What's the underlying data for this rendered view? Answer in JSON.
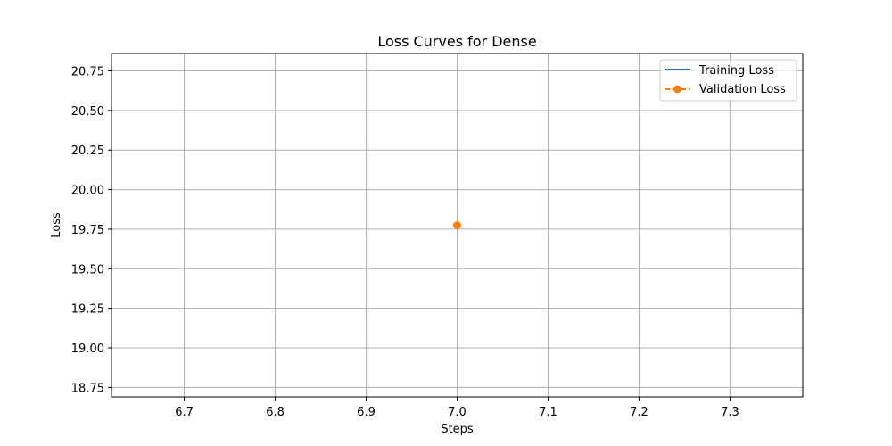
{
  "chart_data": {
    "type": "line",
    "title": "Loss Curves for Dense",
    "xlabel": "Steps",
    "ylabel": "Loss",
    "xlim": [
      6.62,
      7.38
    ],
    "ylim": [
      18.69,
      20.86
    ],
    "x_ticks": [
      6.7,
      6.8,
      6.9,
      7.0,
      7.1,
      7.2,
      7.3
    ],
    "x_tick_labels": [
      "6.7",
      "6.8",
      "6.9",
      "7.0",
      "7.1",
      "7.2",
      "7.3"
    ],
    "y_ticks": [
      18.75,
      19.0,
      19.25,
      19.5,
      19.75,
      20.0,
      20.25,
      20.5,
      20.75
    ],
    "y_tick_labels": [
      "18.75",
      "19.00",
      "19.25",
      "19.50",
      "19.75",
      "20.00",
      "20.25",
      "20.50",
      "20.75"
    ],
    "grid": true,
    "legend_position": "top-right",
    "series": [
      {
        "name": "Training Loss",
        "color": "#1f77b4",
        "style": "solid",
        "marker": "none",
        "x": [],
        "y": []
      },
      {
        "name": "Validation Loss",
        "color": "#ff7f0e",
        "style": "dashed",
        "marker": "circle",
        "x": [
          7.0
        ],
        "y": [
          19.775
        ]
      }
    ]
  }
}
